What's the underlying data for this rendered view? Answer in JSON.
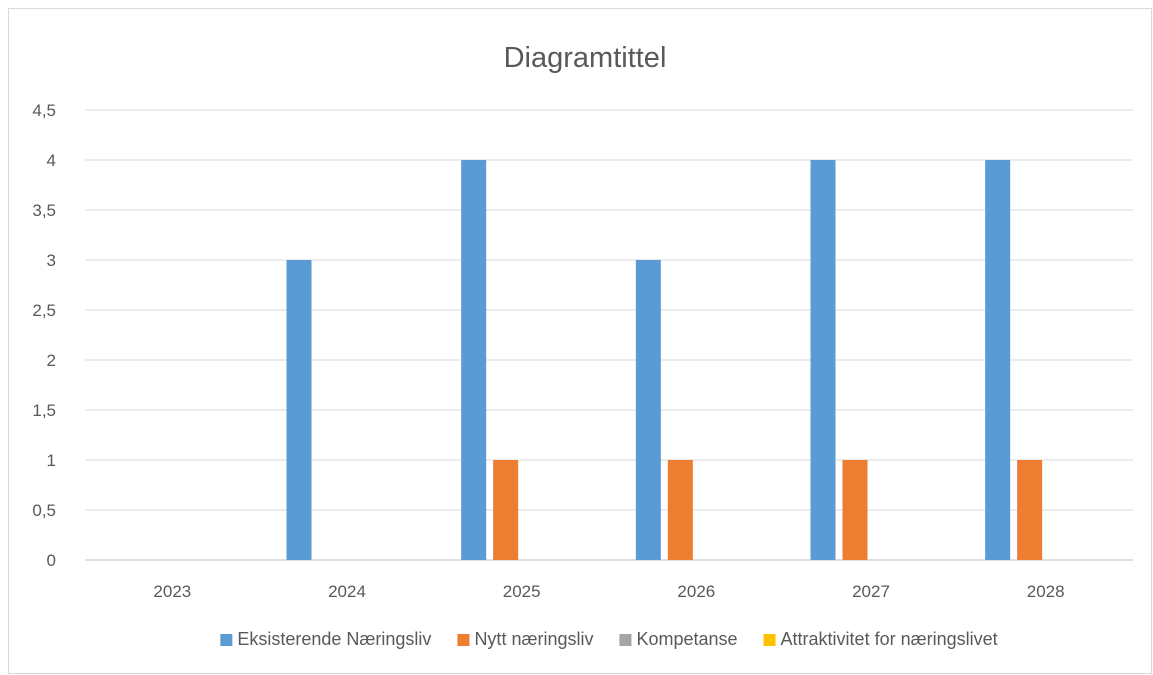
{
  "chart_data": {
    "type": "bar",
    "title": "Diagramtittel",
    "xlabel": "",
    "ylabel": "",
    "categories": [
      "2023",
      "2024",
      "2025",
      "2026",
      "2027",
      "2028"
    ],
    "ylim": [
      0,
      4.5
    ],
    "yticks": [
      0,
      0.5,
      1,
      1.5,
      2,
      2.5,
      3,
      3.5,
      4,
      4.5
    ],
    "ytick_labels": [
      "0",
      "0,5",
      "1",
      "1,5",
      "2",
      "2,5",
      "3",
      "3,5",
      "4",
      "4,5"
    ],
    "grid": true,
    "legend_position": "bottom",
    "series": [
      {
        "name": "Eksisterende Næringsliv",
        "color": "#5b9bd5",
        "values": [
          0,
          3,
          4,
          3,
          4,
          4
        ]
      },
      {
        "name": "Nytt næringsliv",
        "color": "#ed7d31",
        "values": [
          0,
          0,
          1,
          1,
          1,
          1
        ]
      },
      {
        "name": "Kompetanse",
        "color": "#a5a5a5",
        "values": [
          0,
          0,
          0,
          0,
          0,
          0
        ]
      },
      {
        "name": "Attraktivitet for næringslivet",
        "color": "#ffc000",
        "values": [
          0,
          0,
          0,
          0,
          0,
          0
        ]
      }
    ]
  }
}
